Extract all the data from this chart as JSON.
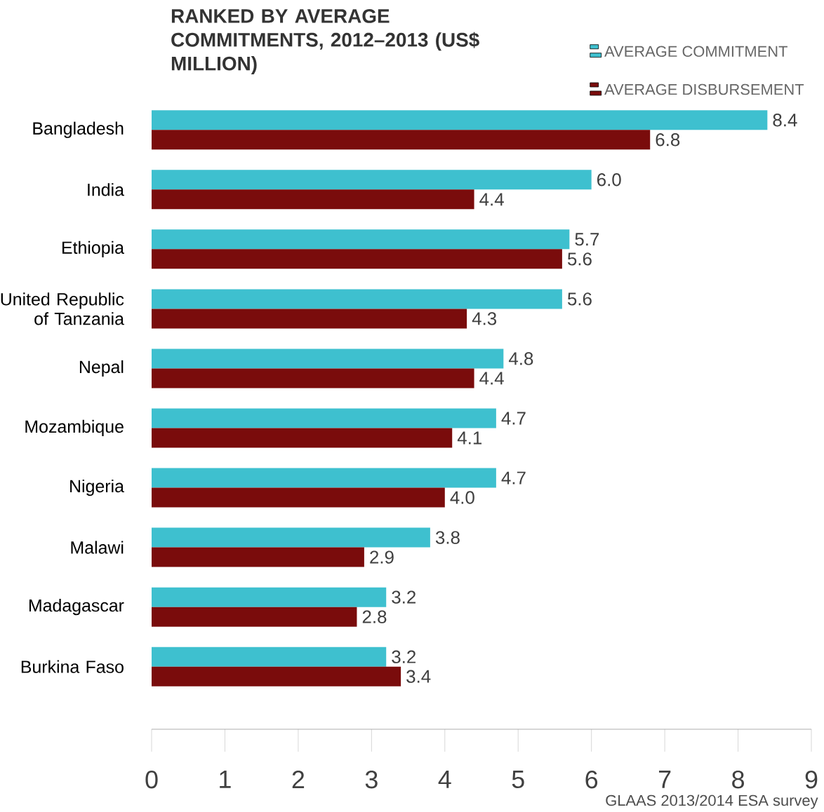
{
  "chart_data": {
    "type": "bar",
    "orientation": "horizontal",
    "title": "RANKED BY AVERAGE COMMITMENTS, 2012–2013 (US$ MILLION)",
    "categories": [
      "Bangladesh",
      "India",
      "Ethiopia",
      "United Republic of Tanzania",
      "Nepal",
      "Mozambique",
      "Nigeria",
      "Malawi",
      "Madagascar",
      "Burkina Faso"
    ],
    "series": [
      {
        "name": "AVERAGE COMMITMENT",
        "color": "#3ec0cf",
        "values": [
          8.4,
          6.0,
          5.7,
          5.6,
          4.8,
          4.7,
          4.7,
          3.8,
          3.2,
          3.2
        ],
        "value_labels": [
          "8.4",
          "6.0",
          "5.7",
          "5.6",
          "4.8",
          "4.7",
          "4.7",
          "3.8",
          "3.2",
          "3.2"
        ]
      },
      {
        "name": "AVERAGE DISBURSEMENT",
        "color": "#7a0c0c",
        "values": [
          6.8,
          4.4,
          5.6,
          4.3,
          4.4,
          4.1,
          4.0,
          2.9,
          2.8,
          3.4
        ],
        "value_labels": [
          "6.8",
          "4.4",
          "5.6",
          "4.3",
          "4.4",
          "4.1",
          "4.0",
          "2.9",
          "2.8",
          "3.4"
        ]
      }
    ],
    "xlim": [
      0,
      9
    ],
    "xticks": [
      0,
      1,
      2,
      3,
      4,
      5,
      6,
      7,
      8,
      9
    ],
    "data_labels": true,
    "legend": "top right",
    "grid": false,
    "annotations": [
      "GLAAS 2013/2014 ESA survey"
    ]
  }
}
